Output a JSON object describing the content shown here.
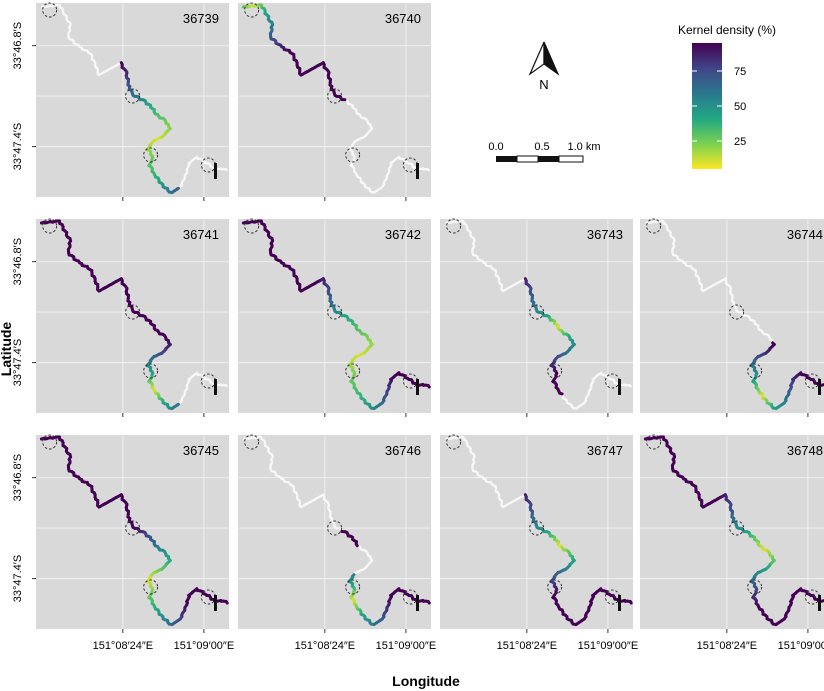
{
  "figure": {
    "x_axis_title": "Longitude",
    "y_axis_title": "Latitude",
    "x_ticks": [
      "151°08′24″E",
      "151°09′00″E"
    ],
    "y_ticks": [
      "33°46.8′S",
      "33°47.4′S"
    ]
  },
  "panels": [
    {
      "id": "36739",
      "row": 0,
      "col": 0,
      "active": [
        [
          0.34,
          0.8
        ]
      ],
      "hot": [
        0.47,
        0.73
      ]
    },
    {
      "id": "36740",
      "row": 0,
      "col": 1,
      "active": [
        [
          0.0,
          0.44
        ]
      ],
      "hot": [
        0.0,
        0.05
      ]
    },
    {
      "id": "36741",
      "row": 1,
      "col": 0,
      "active": [
        [
          0.0,
          0.8
        ]
      ],
      "hot": [
        0.68,
        0.74
      ]
    },
    {
      "id": "36742",
      "row": 1,
      "col": 1,
      "active": [
        [
          0.0,
          1.0
        ]
      ],
      "hot": [
        0.45,
        0.75
      ]
    },
    {
      "id": "36743",
      "row": 1,
      "col": 2,
      "active": [
        [
          0.34,
          0.72
        ]
      ],
      "hot": [
        0.46,
        0.52
      ]
    },
    {
      "id": "36744",
      "row": 1,
      "col": 3,
      "active": [
        [
          0.55,
          1.0
        ]
      ],
      "hot": [
        0.7,
        0.76
      ]
    },
    {
      "id": "36745",
      "row": 2,
      "col": 0,
      "active": [
        [
          0.0,
          1.0
        ]
      ],
      "hot": [
        0.55,
        0.72
      ]
    },
    {
      "id": "36746",
      "row": 2,
      "col": 1,
      "active": [
        [
          0.44,
          0.5
        ],
        [
          0.62,
          1.0
        ]
      ],
      "hot": [
        0.66,
        0.73
      ]
    },
    {
      "id": "36747",
      "row": 2,
      "col": 2,
      "active": [
        [
          0.34,
          1.0
        ]
      ],
      "hot": [
        0.45,
        0.55
      ]
    },
    {
      "id": "36748",
      "row": 2,
      "col": 3,
      "active": [
        [
          0.0,
          1.0
        ]
      ],
      "hot": [
        0.45,
        0.58
      ]
    }
  ],
  "legend": {
    "title": "Kernel density (%)",
    "ticks": [
      "75",
      "50",
      "25"
    ],
    "tick_values": [
      75,
      50,
      25
    ],
    "range": [
      5,
      95
    ],
    "colors": [
      "#fde725",
      "#7ad151",
      "#22a884",
      "#2a788e",
      "#414487",
      "#440154"
    ]
  },
  "north_arrow": {
    "label": "N"
  },
  "scale_bar": {
    "ticks": [
      "0.0",
      "0.5",
      "1.0 km"
    ]
  },
  "colors": {
    "panel_bg": "#d9d9d9",
    "grid": "#efefef",
    "inactive_track": "#f7f7f7",
    "station_stroke": "#333333"
  }
}
